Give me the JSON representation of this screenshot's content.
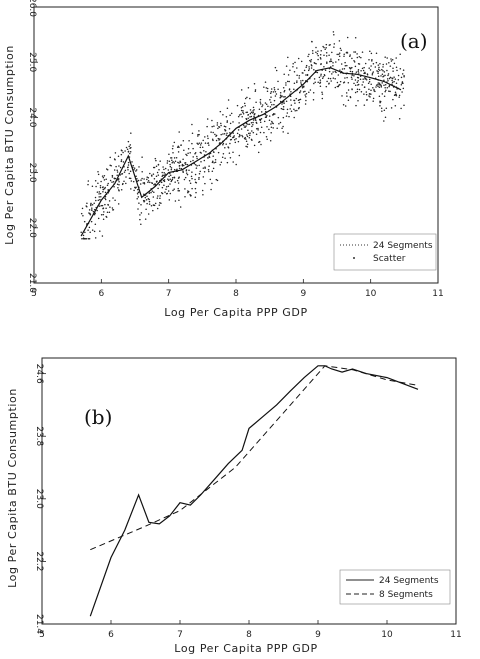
{
  "chart_data": [
    {
      "type": "scatter",
      "panel_label": "(a)",
      "xlabel": "Log Per Capita PPP GDP",
      "ylabel": "Log Per Capita BTU Consumption",
      "xlim": [
        5,
        11
      ],
      "ylim": [
        21.0,
        26.0
      ],
      "x_ticks": [
        "5",
        "6",
        "7",
        "8",
        "9",
        "10",
        "11"
      ],
      "y_ticks": [
        "21.0",
        "22.0",
        "23.0",
        "24.0",
        "25.0",
        "26.0"
      ],
      "y_tick_values": [
        21.0,
        22.0,
        23.0,
        24.0,
        25.0,
        26.0
      ],
      "legend_position": "bottom-right",
      "series": [
        {
          "name": "24 Segments",
          "style": "line",
          "x": [
            5.7,
            6.0,
            6.2,
            6.4,
            6.6,
            6.8,
            7.0,
            7.2,
            7.4,
            7.6,
            7.8,
            8.0,
            8.2,
            8.4,
            8.6,
            8.8,
            9.0,
            9.2,
            9.4,
            9.6,
            9.8,
            10.0,
            10.2,
            10.45
          ],
          "y": [
            21.85,
            22.5,
            22.8,
            23.3,
            22.55,
            22.75,
            23.0,
            23.05,
            23.2,
            23.35,
            23.55,
            23.8,
            23.95,
            24.05,
            24.2,
            24.4,
            24.6,
            24.85,
            24.9,
            24.8,
            24.78,
            24.72,
            24.65,
            24.5
          ]
        },
        {
          "name": "Scatter",
          "style": "points",
          "x_range": [
            5.7,
            10.5
          ],
          "y_range": [
            21.8,
            25.7
          ]
        }
      ]
    },
    {
      "type": "line",
      "panel_label": "(b)",
      "xlabel": "Log Per Capita PPP GDP",
      "ylabel": "Log Per Capita BTU Consumption",
      "xlim": [
        5,
        11
      ],
      "ylim": [
        21.4,
        24.8
      ],
      "x_ticks": [
        "5",
        "6",
        "7",
        "8",
        "9",
        "10",
        "11"
      ],
      "y_ticks": [
        "21.4",
        "22.2",
        "23.0",
        "23.8",
        "24.6"
      ],
      "y_tick_values": [
        21.4,
        22.2,
        23.0,
        23.8,
        24.6
      ],
      "legend_position": "bottom-right",
      "series": [
        {
          "name": "24 Segments",
          "style": "solid",
          "x": [
            5.7,
            6.0,
            6.2,
            6.4,
            6.55,
            6.7,
            6.85,
            7.0,
            7.15,
            7.3,
            7.5,
            7.7,
            7.9,
            8.0,
            8.2,
            8.4,
            8.6,
            8.8,
            9.0,
            9.1,
            9.2,
            9.35,
            9.5,
            9.7,
            10.0,
            10.45
          ],
          "y": [
            21.5,
            22.25,
            22.6,
            23.05,
            22.7,
            22.68,
            22.78,
            22.95,
            22.92,
            23.05,
            23.25,
            23.45,
            23.62,
            23.9,
            24.05,
            24.2,
            24.38,
            24.55,
            24.7,
            24.7,
            24.66,
            24.62,
            24.66,
            24.6,
            24.55,
            24.4
          ]
        },
        {
          "name": "8 Segments",
          "style": "dashed",
          "x": [
            5.7,
            6.5,
            7.0,
            7.8,
            8.5,
            9.1,
            9.5,
            10.0,
            10.45
          ],
          "y": [
            22.35,
            22.65,
            22.85,
            23.4,
            24.1,
            24.7,
            24.65,
            24.52,
            24.45
          ]
        }
      ]
    }
  ]
}
